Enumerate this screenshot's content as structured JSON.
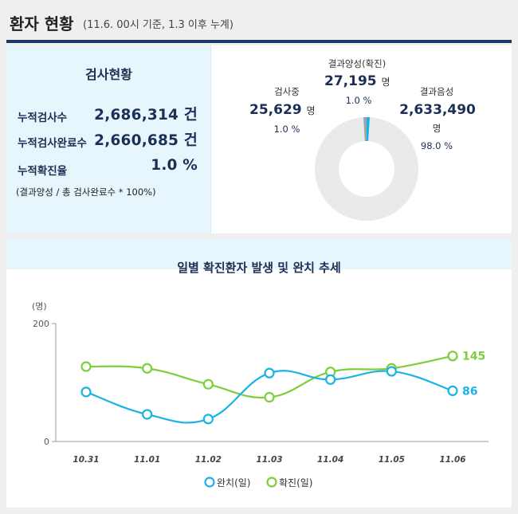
{
  "header": {
    "title": "환자 현황",
    "subtitle": "(11.6. 00시 기준, 1.3 이후 누계)"
  },
  "test_status": {
    "title": "검사현황",
    "rows": [
      {
        "label": "누적검사수",
        "value": "2,686,314 건"
      },
      {
        "label": "누적검사완료수",
        "value": "2,660,685 건"
      },
      {
        "label": "누적확진율",
        "value": "1.0 %"
      }
    ],
    "note": "(결과양성 / 총 검사완료수 * 100%)"
  },
  "donut": {
    "positive": {
      "label": "결과양성(확진)",
      "value": "27,195",
      "unit": "명",
      "percent": "1.0 %",
      "share": 0.01
    },
    "testing": {
      "label": "검사중",
      "value": "25,629",
      "unit": "명",
      "percent": "1.0 %",
      "share": 0.01
    },
    "negative": {
      "label": "결과음성",
      "value": "2,633,490",
      "unit": "명",
      "percent": "98.0 %",
      "share": 0.98
    },
    "colors": {
      "positive": "#1ab3e6",
      "testing": "#9aa8ae",
      "negative": "#e9eaeb"
    }
  },
  "chart_data": {
    "type": "line",
    "title": "일별 확진환자 발생 및 완치 추세",
    "ylabel": "(명)",
    "ylim": [
      0,
      200
    ],
    "yticks": [
      "0",
      "200"
    ],
    "categories": [
      "10.31",
      "11.01",
      "11.02",
      "11.03",
      "11.04",
      "11.05",
      "11.06"
    ],
    "series": [
      {
        "name": "완치(일)",
        "color": "#1ab3e6",
        "values": [
          84,
          46,
          38,
          116,
          105,
          119,
          86
        ],
        "end_label": "86"
      },
      {
        "name": "확진(일)",
        "color": "#7ccf3a",
        "values": [
          127,
          124,
          97,
          75,
          118,
          124,
          145
        ],
        "end_label": "145"
      }
    ],
    "grid": false,
    "legend": "bottom"
  }
}
